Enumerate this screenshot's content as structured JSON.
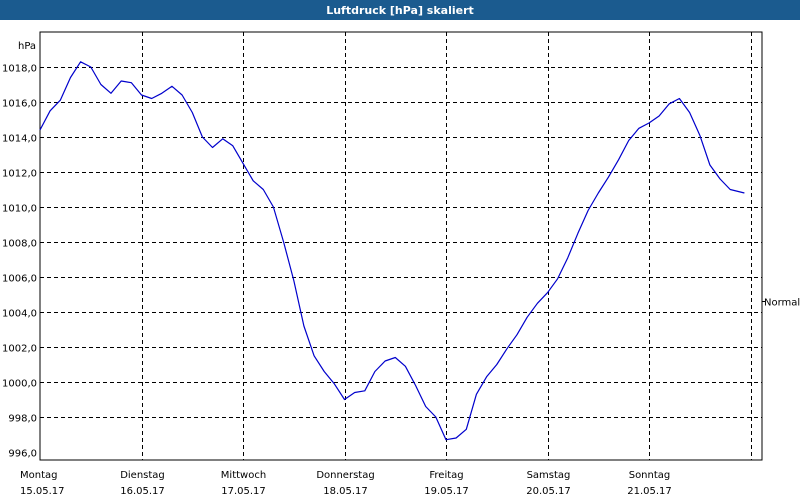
{
  "title_bar": "Luftdruck [hPa] skaliert",
  "chart_data": {
    "type": "line",
    "title": "Luftdruck [hPa] skaliert",
    "ylabel": "hPa",
    "xlabel": "",
    "ylim": [
      996.0,
      1019.5
    ],
    "yticks": [
      "1018,0",
      "1016,0",
      "1014,0",
      "1012,0",
      "1010,0",
      "1008,0",
      "1006,0",
      "1004,0",
      "1002,0",
      "1000,0",
      "998,0",
      "996,0"
    ],
    "ytick_values": [
      1018,
      1016,
      1014,
      1012,
      1010,
      1008,
      1006,
      1004,
      1002,
      1000,
      998,
      996
    ],
    "xticks": [
      {
        "day": "Montag",
        "date": "15.05.17"
      },
      {
        "day": "Dienstag",
        "date": "16.05.17"
      },
      {
        "day": "Mittwoch",
        "date": "17.05.17"
      },
      {
        "day": "Donnerstag",
        "date": "18.05.17"
      },
      {
        "day": "Freitag",
        "date": "19.05.17"
      },
      {
        "day": "Samstag",
        "date": "20.05.17"
      },
      {
        "day": "Sonntag",
        "date": "21.05.17"
      }
    ],
    "xlim_days": [
      0,
      7
    ],
    "grid": true,
    "reference_label": "Normal",
    "reference_value": 1004.6,
    "series": [
      {
        "color": "#0000cc",
        "points": [
          [
            0.0,
            1014.4
          ],
          [
            0.1,
            1015.5
          ],
          [
            0.2,
            1016.1
          ],
          [
            0.3,
            1017.4
          ],
          [
            0.4,
            1018.3
          ],
          [
            0.5,
            1018.0
          ],
          [
            0.6,
            1017.0
          ],
          [
            0.7,
            1016.5
          ],
          [
            0.8,
            1017.2
          ],
          [
            0.9,
            1017.1
          ],
          [
            1.0,
            1016.4
          ],
          [
            1.1,
            1016.2
          ],
          [
            1.2,
            1016.5
          ],
          [
            1.3,
            1016.9
          ],
          [
            1.4,
            1016.4
          ],
          [
            1.5,
            1015.4
          ],
          [
            1.6,
            1014.0
          ],
          [
            1.7,
            1013.4
          ],
          [
            1.8,
            1013.9
          ],
          [
            1.9,
            1013.5
          ],
          [
            2.0,
            1012.5
          ],
          [
            2.1,
            1011.5
          ],
          [
            2.2,
            1011.0
          ],
          [
            2.3,
            1010.0
          ],
          [
            2.4,
            1008.0
          ],
          [
            2.5,
            1005.8
          ],
          [
            2.6,
            1003.2
          ],
          [
            2.7,
            1001.5
          ],
          [
            2.8,
            1000.6
          ],
          [
            2.9,
            999.9
          ],
          [
            3.0,
            999.0
          ],
          [
            3.1,
            999.4
          ],
          [
            3.2,
            999.5
          ],
          [
            3.3,
            1000.6
          ],
          [
            3.4,
            1001.2
          ],
          [
            3.5,
            1001.4
          ],
          [
            3.6,
            1000.9
          ],
          [
            3.7,
            999.8
          ],
          [
            3.8,
            998.6
          ],
          [
            3.9,
            998.0
          ],
          [
            4.0,
            996.7
          ],
          [
            4.1,
            996.8
          ],
          [
            4.2,
            997.3
          ],
          [
            4.3,
            999.3
          ],
          [
            4.4,
            1000.3
          ],
          [
            4.5,
            1001.0
          ],
          [
            4.6,
            1001.9
          ],
          [
            4.7,
            1002.7
          ],
          [
            4.8,
            1003.7
          ],
          [
            4.9,
            1004.5
          ],
          [
            5.0,
            1005.1
          ],
          [
            5.1,
            1005.9
          ],
          [
            5.2,
            1007.1
          ],
          [
            5.3,
            1008.5
          ],
          [
            5.4,
            1009.8
          ],
          [
            5.5,
            1010.8
          ],
          [
            5.6,
            1011.7
          ],
          [
            5.7,
            1012.7
          ],
          [
            5.8,
            1013.8
          ],
          [
            5.9,
            1014.5
          ],
          [
            6.0,
            1014.8
          ],
          [
            6.1,
            1015.2
          ],
          [
            6.2,
            1015.9
          ],
          [
            6.3,
            1016.2
          ],
          [
            6.4,
            1015.4
          ],
          [
            6.5,
            1014.1
          ],
          [
            6.6,
            1012.4
          ],
          [
            6.7,
            1011.6
          ],
          [
            6.8,
            1011.0
          ],
          [
            6.94,
            1010.8
          ]
        ]
      }
    ]
  }
}
